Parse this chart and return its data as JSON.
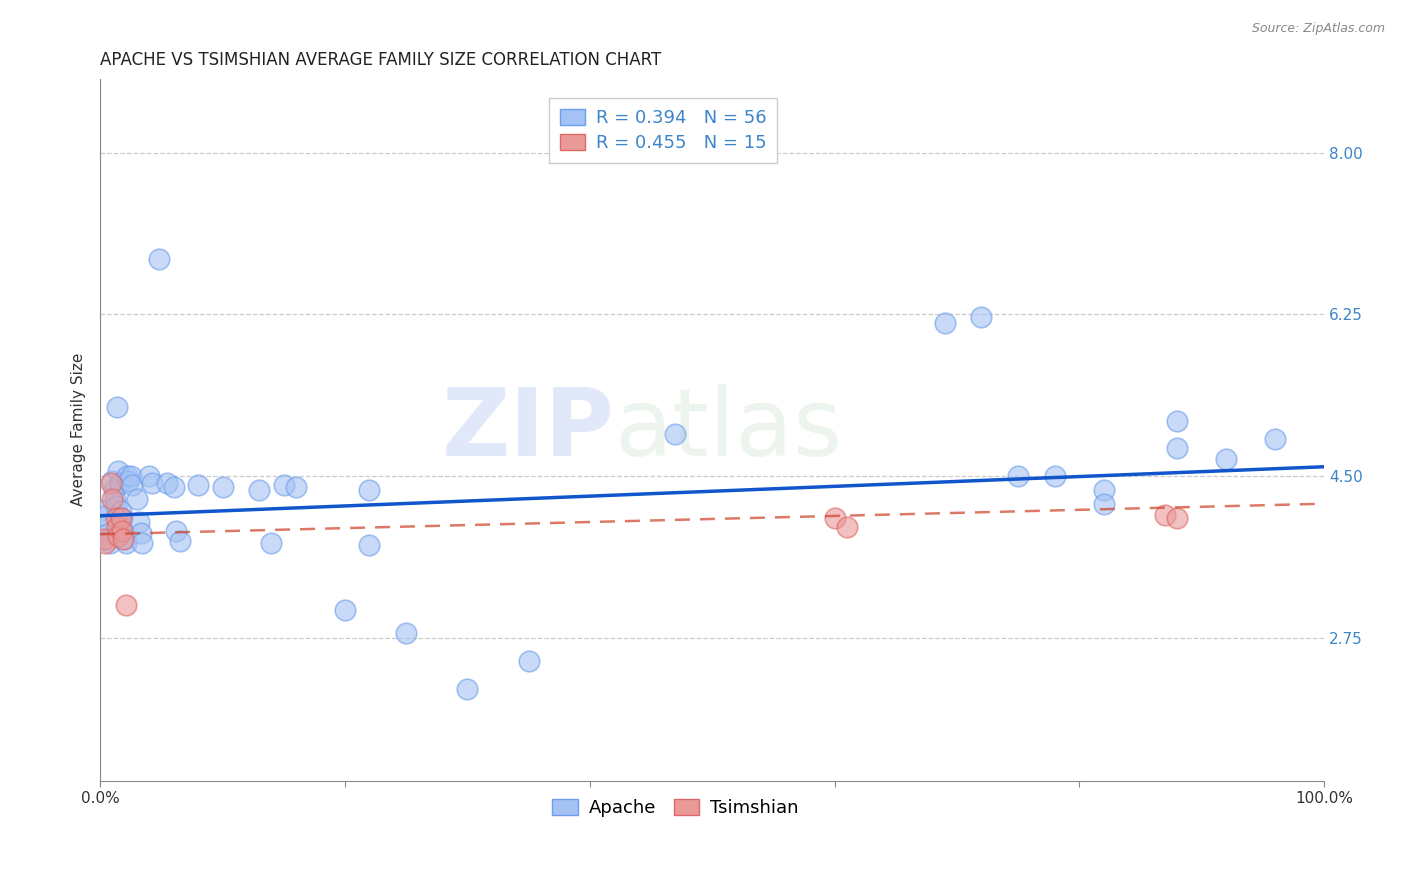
{
  "title": "APACHE VS TSIMSHIAN AVERAGE FAMILY SIZE CORRELATION CHART",
  "source": "Source: ZipAtlas.com",
  "ylabel": "Average Family Size",
  "watermark_zip": "ZIP",
  "watermark_atlas": "atlas",
  "apache_R": 0.394,
  "apache_N": 56,
  "tsimshian_R": 0.455,
  "tsimshian_N": 15,
  "yticks": [
    2.75,
    4.5,
    6.25,
    8.0
  ],
  "xlim": [
    0.0,
    1.0
  ],
  "ylim": [
    1.2,
    8.8
  ],
  "apache_color": "#a4c2f4",
  "apache_edge_color": "#6d9eeb",
  "tsimshian_color": "#ea9999",
  "tsimshian_edge_color": "#e06666",
  "apache_line_color": "#1155cc",
  "tsimshian_line_color": "#cc4125",
  "apache_points": [
    [
      0.003,
      4.13
    ],
    [
      0.004,
      4.07
    ],
    [
      0.005,
      3.96
    ],
    [
      0.006,
      3.87
    ],
    [
      0.007,
      3.82
    ],
    [
      0.008,
      3.78
    ],
    [
      0.01,
      4.45
    ],
    [
      0.011,
      4.35
    ],
    [
      0.012,
      4.25
    ],
    [
      0.013,
      4.18
    ],
    [
      0.014,
      5.25
    ],
    [
      0.015,
      4.55
    ],
    [
      0.016,
      4.42
    ],
    [
      0.017,
      4.12
    ],
    [
      0.018,
      4.05
    ],
    [
      0.019,
      3.9
    ],
    [
      0.02,
      3.82
    ],
    [
      0.021,
      3.78
    ],
    [
      0.022,
      4.5
    ],
    [
      0.023,
      4.45
    ],
    [
      0.025,
      4.5
    ],
    [
      0.026,
      4.4
    ],
    [
      0.03,
      4.25
    ],
    [
      0.032,
      4.0
    ],
    [
      0.033,
      3.88
    ],
    [
      0.034,
      3.78
    ],
    [
      0.04,
      4.5
    ],
    [
      0.042,
      4.42
    ],
    [
      0.048,
      6.85
    ],
    [
      0.055,
      4.42
    ],
    [
      0.06,
      4.38
    ],
    [
      0.062,
      3.9
    ],
    [
      0.065,
      3.8
    ],
    [
      0.08,
      4.4
    ],
    [
      0.1,
      4.38
    ],
    [
      0.13,
      4.35
    ],
    [
      0.14,
      3.78
    ],
    [
      0.15,
      4.4
    ],
    [
      0.16,
      4.38
    ],
    [
      0.2,
      3.05
    ],
    [
      0.22,
      4.35
    ],
    [
      0.22,
      3.75
    ],
    [
      0.25,
      2.8
    ],
    [
      0.3,
      2.2
    ],
    [
      0.35,
      2.5
    ],
    [
      0.47,
      4.95
    ],
    [
      0.69,
      6.15
    ],
    [
      0.72,
      6.22
    ],
    [
      0.75,
      4.5
    ],
    [
      0.78,
      4.5
    ],
    [
      0.82,
      4.35
    ],
    [
      0.82,
      4.2
    ],
    [
      0.88,
      5.1
    ],
    [
      0.88,
      4.8
    ],
    [
      0.92,
      4.68
    ],
    [
      0.96,
      4.9
    ]
  ],
  "tsimshian_points": [
    [
      0.003,
      3.82
    ],
    [
      0.004,
      3.78
    ],
    [
      0.009,
      4.42
    ],
    [
      0.01,
      4.25
    ],
    [
      0.013,
      4.05
    ],
    [
      0.014,
      3.95
    ],
    [
      0.015,
      3.85
    ],
    [
      0.017,
      4.05
    ],
    [
      0.018,
      3.9
    ],
    [
      0.019,
      3.82
    ],
    [
      0.021,
      3.1
    ],
    [
      0.6,
      4.05
    ],
    [
      0.61,
      3.95
    ],
    [
      0.87,
      4.08
    ],
    [
      0.88,
      4.05
    ]
  ],
  "apache_trendline_x": [
    0.0,
    1.0
  ],
  "apache_trendline_y": [
    4.07,
    4.6
  ],
  "tsimshian_trendline_x": [
    0.0,
    1.0
  ],
  "tsimshian_trendline_y": [
    3.87,
    4.2
  ],
  "background_color": "#ffffff",
  "grid_color": "#cccccc",
  "title_fontsize": 12,
  "axis_label_fontsize": 11,
  "tick_fontsize": 11,
  "legend_fontsize": 13
}
